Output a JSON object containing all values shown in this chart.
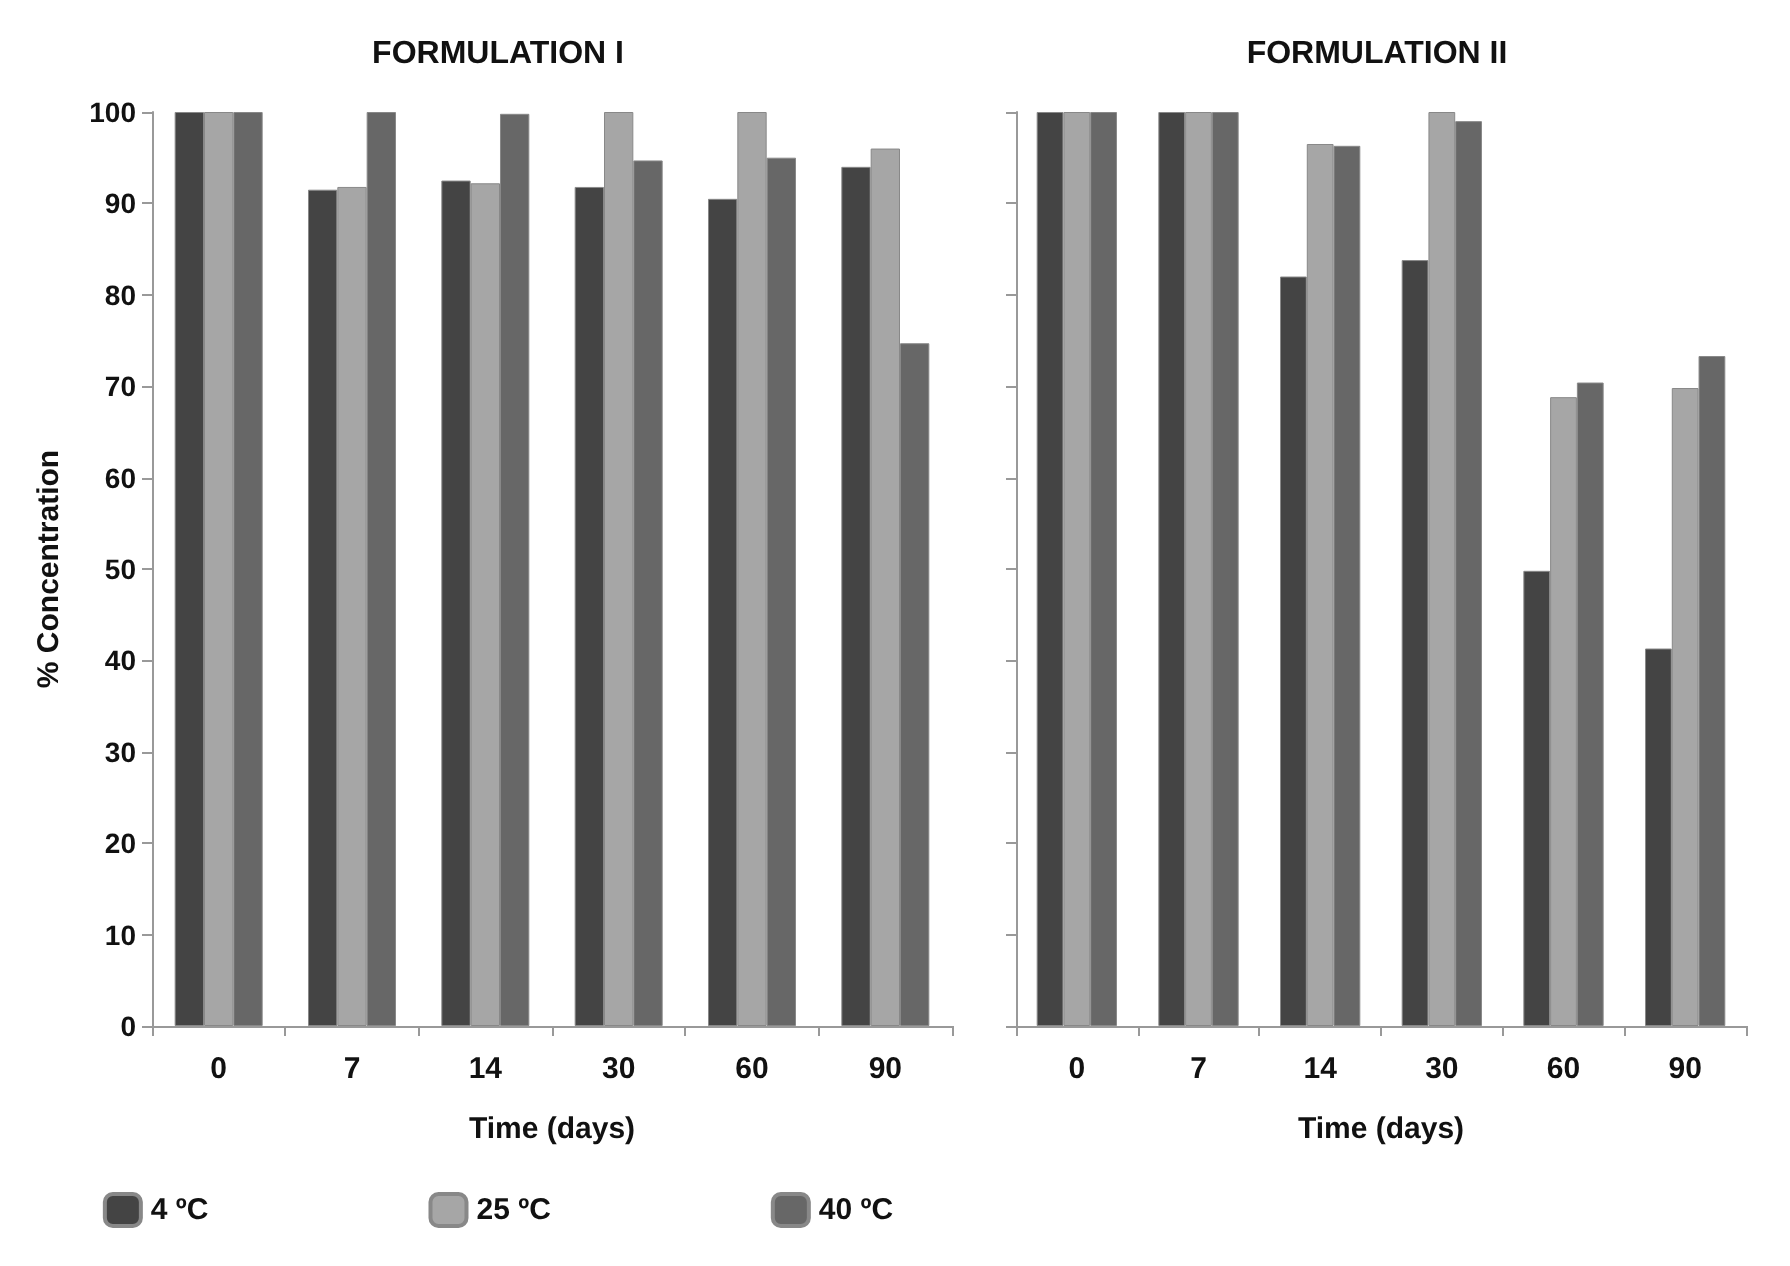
{
  "chart_data": [
    {
      "type": "bar",
      "title": "FORMULATION I",
      "xlabel": "Time (days)",
      "ylabel": "% Concentration",
      "categories": [
        "0",
        "7",
        "14",
        "30",
        "60",
        "90"
      ],
      "series": [
        {
          "name": "4 ºC",
          "color": "#444444",
          "values": [
            100,
            91.5,
            92.5,
            91.8,
            90.5,
            94
          ]
        },
        {
          "name": "25 ºC",
          "color": "#a6a6a6",
          "values": [
            100,
            91.8,
            92.2,
            100,
            100,
            96
          ]
        },
        {
          "name": "40 ºC",
          "color": "#676767",
          "values": [
            100,
            100,
            99.8,
            94.7,
            95,
            74.7
          ]
        }
      ],
      "ylim": [
        0,
        100
      ],
      "yticks": [
        0,
        10,
        20,
        30,
        40,
        50,
        60,
        70,
        80,
        90,
        100
      ],
      "grid": false,
      "legend": "bottom"
    },
    {
      "type": "bar",
      "title": "FORMULATION II",
      "xlabel": "Time (days)",
      "categories": [
        "0",
        "7",
        "14",
        "30",
        "60",
        "90"
      ],
      "series": [
        {
          "color": "#444444",
          "values": [
            100,
            100,
            82,
            83.8,
            49.8,
            41.3
          ]
        },
        {
          "color": "#a6a6a6",
          "values": [
            100,
            100,
            96.5,
            100,
            68.8,
            69.8
          ]
        },
        {
          "color": "#676767",
          "values": [
            100,
            100,
            96.3,
            99,
            70.4,
            73.3
          ]
        }
      ],
      "ylim": [
        0,
        100
      ],
      "yticks": [
        0,
        10,
        20,
        30,
        40,
        50,
        60,
        70,
        80,
        90,
        100
      ],
      "grid": false,
      "tick_labels": "x",
      "legend": false
    }
  ]
}
